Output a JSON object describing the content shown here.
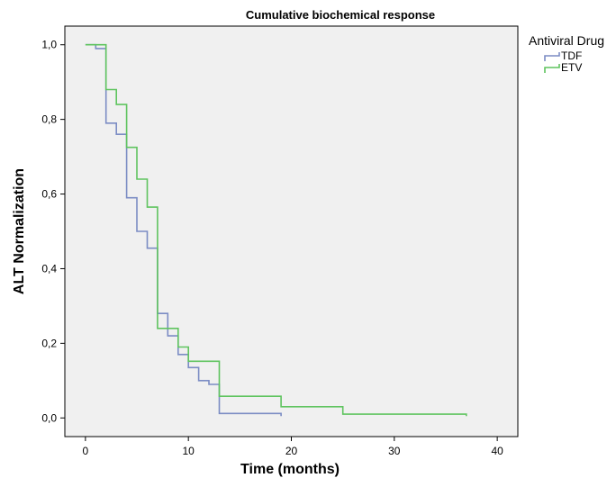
{
  "chart_data": {
    "type": "line",
    "subtype": "step",
    "title": "Cumulative biochemical response",
    "xlabel": "Time (months)",
    "ylabel": "ALT Normalization",
    "xlim": [
      -2,
      42
    ],
    "ylim": [
      -0.05,
      1.05
    ],
    "x_ticks": [
      0,
      10,
      20,
      30,
      40
    ],
    "x_tick_labels": [
      "0",
      "10",
      "20",
      "30",
      "40"
    ],
    "y_ticks": [
      0,
      0.2,
      0.4,
      0.6,
      0.8,
      1.0
    ],
    "y_tick_labels": [
      "0,0",
      "0,2",
      "0,4",
      "0,6",
      "0,8",
      "1,0"
    ],
    "grid": false,
    "legend": {
      "title": "Antiviral Drug",
      "position": "top-right outside"
    },
    "series": [
      {
        "name": "TDF",
        "color": "#7b8cc4",
        "points": [
          [
            0,
            1.0
          ],
          [
            1,
            0.99
          ],
          [
            2,
            0.79
          ],
          [
            3,
            0.76
          ],
          [
            4,
            0.59
          ],
          [
            5,
            0.5
          ],
          [
            6,
            0.455
          ],
          [
            7,
            0.28
          ],
          [
            8,
            0.22
          ],
          [
            9,
            0.17
          ],
          [
            10,
            0.135
          ],
          [
            11,
            0.1
          ],
          [
            12,
            0.09
          ],
          [
            13,
            0.012
          ],
          [
            19,
            0.005
          ]
        ]
      },
      {
        "name": "ETV",
        "color": "#5fc45f",
        "points": [
          [
            0,
            1.0
          ],
          [
            2,
            0.88
          ],
          [
            3,
            0.84
          ],
          [
            4,
            0.725
          ],
          [
            5,
            0.64
          ],
          [
            6,
            0.565
          ],
          [
            7,
            0.24
          ],
          [
            9,
            0.19
          ],
          [
            10,
            0.152
          ],
          [
            13,
            0.058
          ],
          [
            19,
            0.03
          ],
          [
            25,
            0.01
          ],
          [
            37,
            0.005
          ]
        ]
      }
    ]
  }
}
